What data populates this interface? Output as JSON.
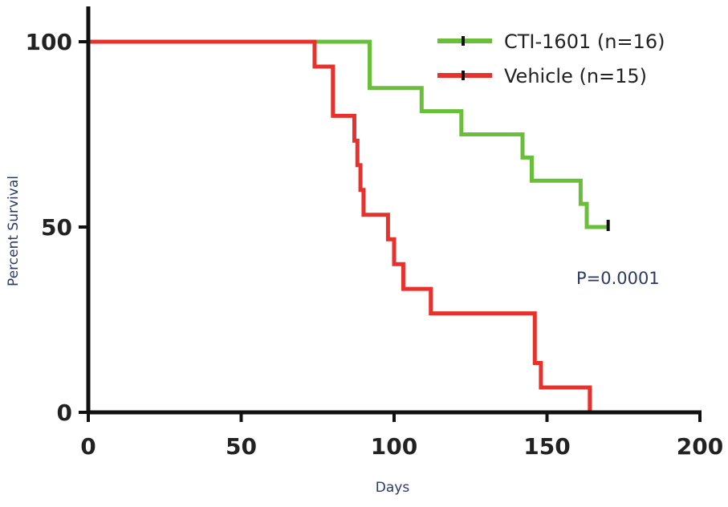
{
  "chart_data": {
    "type": "line",
    "subtype": "kaplan-meier-step",
    "title": "",
    "xlabel": "Days",
    "ylabel": "Percent Survival",
    "xlim": [
      0,
      200
    ],
    "ylim": [
      0,
      100
    ],
    "xticks": [
      0,
      50,
      100,
      150,
      200
    ],
    "yticks": [
      0,
      50,
      100
    ],
    "grid": false,
    "legend_position": "top-right",
    "annotation": "P=0.0001",
    "series": [
      {
        "name": "CTI-1601 (n=16)",
        "color": "#6abf3a",
        "x": [
          0,
          92,
          109,
          122,
          142,
          145,
          161,
          163,
          170
        ],
        "y": [
          100,
          87.5,
          81.25,
          75,
          68.75,
          62.5,
          56.25,
          50,
          50
        ],
        "censored": [
          [
            170,
            50
          ]
        ]
      },
      {
        "name": "Vehicle (n=15)",
        "color": "#e8312c",
        "x": [
          0,
          74,
          80,
          87,
          88,
          89,
          90,
          91,
          98,
          100,
          103,
          106,
          112,
          146,
          148,
          164
        ],
        "y": [
          100,
          93.3,
          80,
          73.3,
          66.7,
          60,
          53.3,
          53.3,
          46.7,
          40,
          33.3,
          33.3,
          26.7,
          13.3,
          6.7,
          0
        ],
        "censored": []
      }
    ]
  }
}
